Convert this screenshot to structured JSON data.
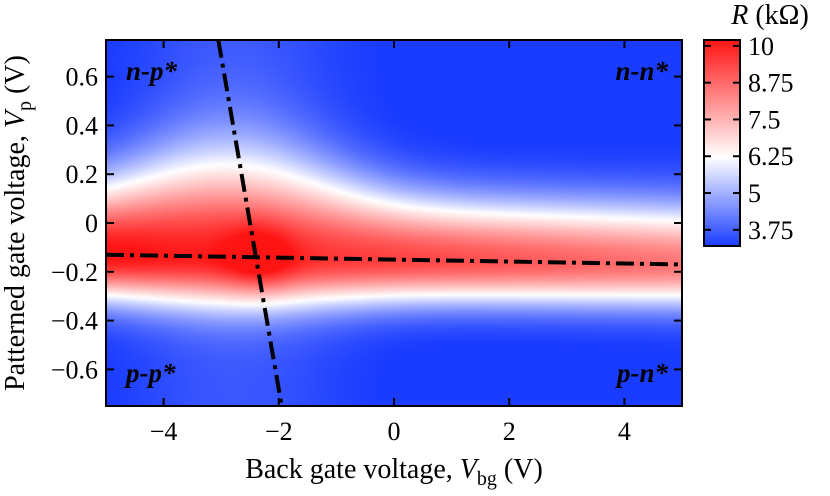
{
  "chart_data": {
    "type": "heatmap",
    "xlabel": "Back gate voltage, V_bg (V)",
    "ylabel": "Patterned gate voltage, V_p (V)",
    "xlabel_parts": {
      "prefix": "Back gate voltage, ",
      "var": "V",
      "sub": "bg",
      "suffix": " (V)"
    },
    "ylabel_parts": {
      "prefix": "Patterned gate voltage, ",
      "var": "V",
      "sub": "p",
      "suffix": " (V)"
    },
    "xlim": [
      -5.0,
      5.0
    ],
    "ylim": [
      -0.75,
      0.75
    ],
    "xticks": [
      -4,
      -2,
      0,
      2,
      4
    ],
    "xtick_labels": [
      "−4",
      "−2",
      "0",
      "2",
      "4"
    ],
    "yticks": [
      0.6,
      0.4,
      0.2,
      0,
      -0.2,
      -0.4,
      -0.6
    ],
    "ytick_labels": [
      "0.6",
      "0.4",
      "0.2",
      "0",
      "−0.2",
      "−0.4",
      "−0.6"
    ],
    "colorbar": {
      "title": "R (kΩ)",
      "title_var": "R",
      "title_unit": " (kΩ)",
      "range": [
        3.2,
        10.2
      ],
      "ticks": [
        10,
        8.75,
        7.5,
        6.25,
        5,
        3.75
      ],
      "tick_labels": [
        "10",
        "8.75",
        "7.5",
        "6.25",
        "5",
        "3.75"
      ],
      "colors": {
        "low": "#1a3cff",
        "mid": "#ffffff",
        "high": "#ff1414"
      }
    },
    "region_labels": [
      {
        "text": "n-p*",
        "position": "top-left"
      },
      {
        "text": "n-n*",
        "position": "top-right"
      },
      {
        "text": "p-p*",
        "position": "bottom-left"
      },
      {
        "text": "p-n*",
        "position": "bottom-right"
      }
    ],
    "dirac_lines": [
      {
        "name": "Dirac point of patterned region",
        "points": [
          [
            -5.0,
            -0.13
          ],
          [
            5.0,
            -0.17
          ]
        ]
      },
      {
        "name": "Dirac point of bulk region",
        "points": [
          [
            -3.05,
            0.75
          ],
          [
            -1.95,
            -0.75
          ]
        ]
      }
    ],
    "grid": false
  }
}
